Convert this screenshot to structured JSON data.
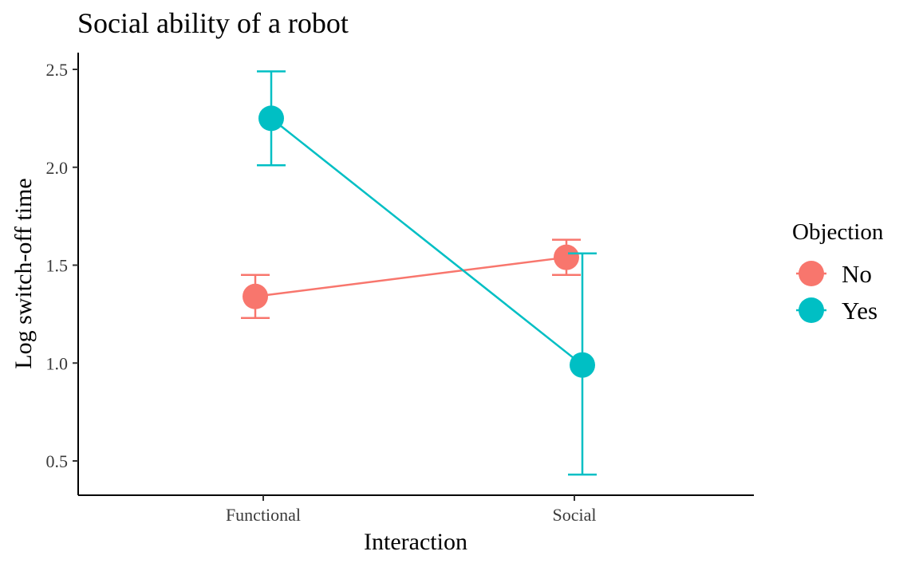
{
  "chart_data": {
    "type": "line",
    "title": "Social ability of a robot",
    "xlabel": "Interaction",
    "ylabel": "Log switch-off time",
    "categories": [
      "Functional",
      "Social"
    ],
    "yticks": [
      "0.5",
      "1.0",
      "1.5",
      "2.0",
      "2.5"
    ],
    "ylim": [
      0.33,
      2.59
    ],
    "grid": false,
    "legend": {
      "title": "Objection",
      "position": "right"
    },
    "series": [
      {
        "name": "No",
        "color": "#F8766D",
        "values": [
          1.34,
          1.54
        ],
        "error_low": [
          1.23,
          1.45
        ],
        "error_high": [
          1.45,
          1.63
        ]
      },
      {
        "name": "Yes",
        "color": "#00BFC4",
        "values": [
          2.25,
          0.99
        ],
        "error_low": [
          2.01,
          0.43
        ],
        "error_high": [
          2.49,
          1.56
        ]
      }
    ]
  }
}
